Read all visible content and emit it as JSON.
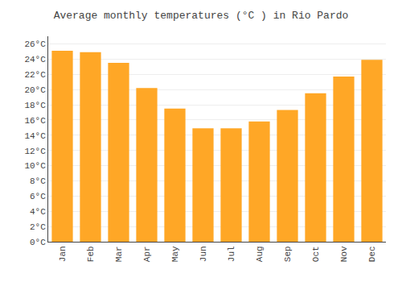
{
  "chart_data": {
    "type": "bar",
    "title": "Average monthly temperatures (°C ) in Rio Pardo",
    "categories": [
      "Jan",
      "Feb",
      "Mar",
      "Apr",
      "May",
      "Jun",
      "Jul",
      "Aug",
      "Sep",
      "Oct",
      "Nov",
      "Dec"
    ],
    "values": [
      25.1,
      24.9,
      23.5,
      20.2,
      17.5,
      14.9,
      14.9,
      15.8,
      17.3,
      19.5,
      21.7,
      23.9
    ],
    "color": "#FFA726",
    "ylim": [
      0,
      27
    ],
    "yticks": [
      {
        "value": 0,
        "label": "0°C"
      },
      {
        "value": 2,
        "label": "2°C"
      },
      {
        "value": 4,
        "label": "4°C"
      },
      {
        "value": 6,
        "label": "6°C"
      },
      {
        "value": 8,
        "label": "8°C"
      },
      {
        "value": 10,
        "label": "10°C"
      },
      {
        "value": 12,
        "label": "12°C"
      },
      {
        "value": 14,
        "label": "14°C"
      },
      {
        "value": 16,
        "label": "16°C"
      },
      {
        "value": 18,
        "label": "18°C"
      },
      {
        "value": 20,
        "label": "20°C"
      },
      {
        "value": 22,
        "label": "22°C"
      },
      {
        "value": 24,
        "label": "24°C"
      },
      {
        "value": 26,
        "label": "26°C"
      }
    ],
    "grid": true
  }
}
